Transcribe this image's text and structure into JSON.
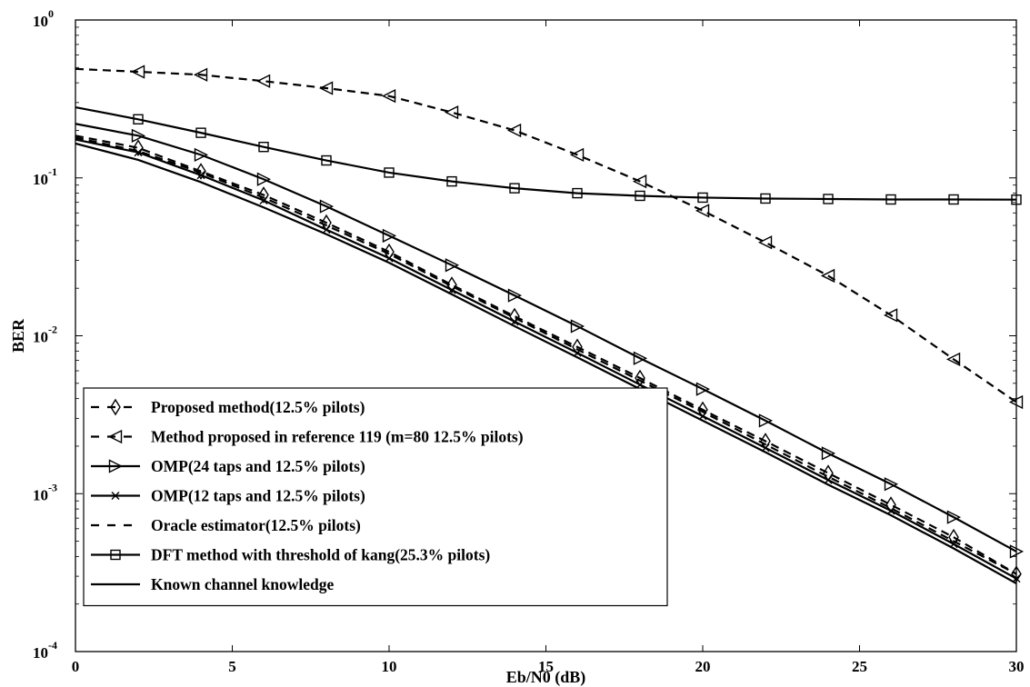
{
  "chart_data": {
    "type": "line",
    "title": "",
    "xlabel": "Eb/N0 (dB)",
    "ylabel": "BER",
    "xlim": [
      0,
      30
    ],
    "ylim": [
      0.0001,
      1
    ],
    "yscale": "log",
    "grid": false,
    "legend_position": "bottom-left",
    "x_ticks": [
      "0",
      "5",
      "10",
      "15",
      "20",
      "25",
      "30"
    ],
    "y_ticks": [
      {
        "base": "10",
        "exp": "-4"
      },
      {
        "base": "10",
        "exp": "-3"
      },
      {
        "base": "10",
        "exp": "-2"
      },
      {
        "base": "10",
        "exp": "-1"
      },
      {
        "base": "10",
        "exp": "0"
      }
    ],
    "series": [
      {
        "name": "Proposed method(12.5% pilots)",
        "style": "dashed",
        "marker": "diamond",
        "color": "#000000",
        "x": [
          0,
          2,
          4,
          6,
          8,
          10,
          12,
          14,
          16,
          18,
          20,
          22,
          24,
          26,
          28,
          30
        ],
        "y": [
          0.185,
          0.155,
          0.11,
          0.078,
          0.052,
          0.034,
          0.021,
          0.0133,
          0.0085,
          0.0054,
          0.0034,
          0.00215,
          0.00135,
          0.00085,
          0.00053,
          0.00031
        ]
      },
      {
        "name": "Method proposed in reference 119 (m=80 12.5% pilots)",
        "style": "dashed",
        "marker": "triangle-left",
        "color": "#000000",
        "x": [
          0,
          2,
          4,
          6,
          8,
          10,
          12,
          14,
          16,
          18,
          20,
          22,
          24,
          26,
          28,
          30
        ],
        "y": [
          0.49,
          0.47,
          0.45,
          0.41,
          0.37,
          0.33,
          0.26,
          0.2,
          0.14,
          0.095,
          0.062,
          0.039,
          0.024,
          0.0135,
          0.0071,
          0.0038
        ]
      },
      {
        "name": "OMP(24 taps and 12.5% pilots)",
        "style": "solid",
        "marker": "triangle-right",
        "color": "#000000",
        "x": [
          0,
          2,
          4,
          6,
          8,
          10,
          12,
          14,
          16,
          18,
          20,
          22,
          24,
          26,
          28,
          30
        ],
        "y": [
          0.22,
          0.185,
          0.14,
          0.098,
          0.066,
          0.043,
          0.028,
          0.018,
          0.0115,
          0.0072,
          0.0046,
          0.0029,
          0.0018,
          0.00115,
          0.00071,
          0.00043
        ]
      },
      {
        "name": "OMP(12 taps and 12.5% pilots)",
        "style": "solid",
        "marker": "x",
        "color": "#000000",
        "x": [
          0,
          2,
          4,
          6,
          8,
          10,
          12,
          14,
          16,
          18,
          20,
          22,
          24,
          26,
          28,
          30
        ],
        "y": [
          0.175,
          0.145,
          0.104,
          0.072,
          0.047,
          0.031,
          0.0195,
          0.0123,
          0.0078,
          0.0049,
          0.0031,
          0.00195,
          0.00122,
          0.00078,
          0.00048,
          0.00029
        ]
      },
      {
        "name": "Oracle estimator(12.5% pilots)",
        "style": "dashed",
        "marker": "none",
        "color": "#000000",
        "x": [
          0,
          2,
          4,
          6,
          8,
          10,
          12,
          14,
          16,
          18,
          20,
          22,
          24,
          26,
          28,
          30
        ],
        "y": [
          0.18,
          0.148,
          0.108,
          0.075,
          0.05,
          0.033,
          0.0206,
          0.013,
          0.0082,
          0.0052,
          0.0033,
          0.00205,
          0.00128,
          0.00081,
          0.0005,
          0.00031
        ]
      },
      {
        "name": "DFT method with threshold of kang(25.3% pilots)",
        "style": "solid",
        "marker": "square",
        "color": "#000000",
        "x": [
          0,
          2,
          4,
          6,
          8,
          10,
          12,
          14,
          16,
          18,
          20,
          22,
          24,
          26,
          28,
          30
        ],
        "y": [
          0.28,
          0.235,
          0.193,
          0.157,
          0.129,
          0.108,
          0.095,
          0.086,
          0.08,
          0.077,
          0.075,
          0.074,
          0.0735,
          0.073,
          0.073,
          0.0728
        ]
      },
      {
        "name": "Known channel knowledge",
        "style": "solid",
        "marker": "none",
        "color": "#000000",
        "x": [
          0,
          2,
          4,
          6,
          8,
          10,
          12,
          14,
          16,
          18,
          20,
          22,
          24,
          26,
          28,
          30
        ],
        "y": [
          0.165,
          0.13,
          0.094,
          0.065,
          0.044,
          0.029,
          0.0183,
          0.0115,
          0.0073,
          0.0046,
          0.0029,
          0.00183,
          0.00114,
          0.00073,
          0.00045,
          0.00027
        ]
      }
    ]
  }
}
